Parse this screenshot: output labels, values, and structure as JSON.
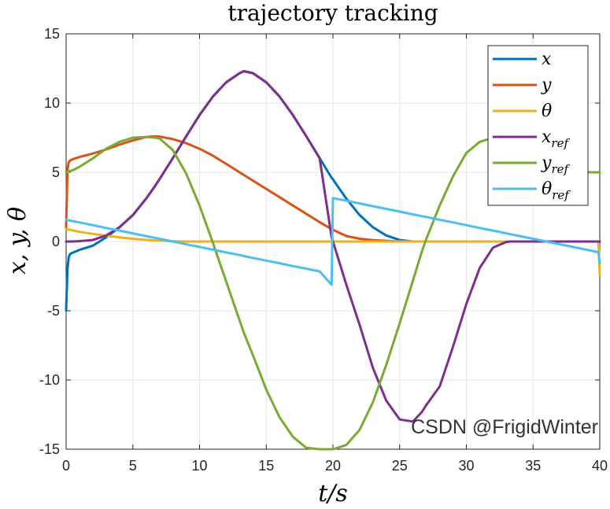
{
  "chart_data": {
    "type": "line",
    "title": "trajectory tracking",
    "xlabel": "t/s",
    "ylabel": "x, y, θ",
    "xlim": [
      0,
      40
    ],
    "ylim": [
      -15,
      15
    ],
    "x_ticks": [
      0,
      5,
      10,
      15,
      20,
      25,
      30,
      35,
      40
    ],
    "y_ticks": [
      15,
      10,
      5,
      0,
      -5,
      -10,
      -15
    ],
    "x_tick_labels": [
      "0",
      "5",
      "10",
      "15",
      "20",
      "25",
      "30",
      "35",
      "40"
    ],
    "y_tick_labels": [
      "15",
      "10",
      "5",
      "0",
      "-5",
      "-10",
      "-15"
    ],
    "grid": true,
    "legend_position": "top-right",
    "x": [
      0,
      0.1,
      0.2,
      0.3,
      0.5,
      1,
      2,
      3,
      4,
      5,
      6,
      6.67,
      7,
      8,
      9,
      10,
      11,
      12,
      13,
      13.33,
      14,
      15,
      16,
      17,
      18,
      19,
      19.9,
      20,
      20.1,
      21,
      22,
      23,
      24,
      25,
      26,
      26.67,
      27,
      28,
      29,
      30,
      31,
      32,
      33,
      33.33,
      34,
      35,
      36,
      37,
      38,
      39,
      39.9,
      40
    ],
    "series": [
      {
        "name": "x",
        "label_main": "x",
        "label_sub": "",
        "color": "#0072BD",
        "values": [
          -5,
          -2,
          -1.1,
          -0.9,
          -0.8,
          -0.6,
          -0.3,
          0.3,
          1.03,
          1.91,
          3.1,
          4.02,
          4.5,
          6.02,
          7.6,
          9.13,
          10.47,
          11.5,
          12.16,
          12.3,
          12.16,
          11.5,
          10.47,
          9.13,
          7.6,
          6.02,
          4.6,
          4.5,
          4.34,
          3.1,
          1.91,
          1.03,
          0.44,
          0.11,
          0.0,
          0.0,
          0.0,
          0.0,
          0.0,
          0.0,
          0.0,
          0.0,
          0.0,
          0.0,
          0.0,
          0.0,
          0.0,
          0.0,
          0.0,
          0.0,
          0.0,
          0.0
        ]
      },
      {
        "name": "y",
        "label_main": "y",
        "label_sub": "",
        "color": "#D95319",
        "values": [
          1,
          5.2,
          5.75,
          5.85,
          5.95,
          6.1,
          6.35,
          6.65,
          7.0,
          7.3,
          7.55,
          7.6,
          7.58,
          7.4,
          7.1,
          6.7,
          6.2,
          5.6,
          5.0,
          4.8,
          4.4,
          3.8,
          3.2,
          2.6,
          2.0,
          1.4,
          0.9,
          0.85,
          0.8,
          0.4,
          0.2,
          0.1,
          0.05,
          0.0,
          0.0,
          0.0,
          0.0,
          0.0,
          0.0,
          0.0,
          0.0,
          0.0,
          0.0,
          0.0,
          0.0,
          0.0,
          0.0,
          0.0,
          0.0,
          0.0,
          0.0,
          0.0
        ]
      },
      {
        "name": "θ",
        "label_main": "θ",
        "label_sub": "",
        "color": "#EDB120",
        "values": [
          0.9,
          0.88,
          0.86,
          0.84,
          0.8,
          0.7,
          0.55,
          0.42,
          0.3,
          0.2,
          0.12,
          0.08,
          0.06,
          0.02,
          0.0,
          0.0,
          0.0,
          0.0,
          0.0,
          0.0,
          0.0,
          0.0,
          0.0,
          0.0,
          0.0,
          0.0,
          0.0,
          0.0,
          0.0,
          0.0,
          0.0,
          0.0,
          0.0,
          0.0,
          0.0,
          0.0,
          0.0,
          0.0,
          0.0,
          0.0,
          0.0,
          0.0,
          0.0,
          0.0,
          0.0,
          0.0,
          0.0,
          0.0,
          0.0,
          0.0,
          0.0,
          -2.4
        ]
      },
      {
        "name": "x_ref",
        "label_main": "x",
        "label_sub": "ref",
        "color": "#7E2F8E",
        "values": [
          0,
          0.0,
          0.0,
          0.0,
          0.0,
          0.03,
          0.11,
          0.44,
          1.03,
          1.91,
          3.1,
          4.02,
          4.5,
          6.02,
          7.6,
          9.13,
          10.47,
          11.5,
          12.16,
          12.3,
          12.16,
          11.5,
          10.47,
          9.13,
          7.6,
          6.02,
          0.3,
          0.0,
          -0.3,
          -3.1,
          -6.02,
          -9.13,
          -11.5,
          -12.85,
          -13.0,
          -12.3,
          -11.8,
          -10.47,
          -7.6,
          -4.5,
          -1.91,
          -0.44,
          -0.03,
          0.0,
          0.0,
          0.0,
          0.0,
          0.0,
          0.0,
          0.0,
          0.0,
          0.0
        ]
      },
      {
        "name": "y_ref",
        "label_main": "y",
        "label_sub": "ref",
        "color": "#77AC30",
        "values": [
          5,
          5.0,
          5.05,
          5.1,
          5.15,
          5.4,
          6.0,
          6.7,
          7.2,
          7.5,
          7.55,
          7.5,
          7.45,
          6.6,
          4.9,
          2.6,
          -0.1,
          -2.9,
          -5.7,
          -6.6,
          -8.2,
          -10.7,
          -12.7,
          -14.1,
          -14.9,
          -15.0,
          -15.0,
          -15.0,
          -14.98,
          -14.7,
          -13.6,
          -11.6,
          -8.9,
          -5.9,
          -2.8,
          -0.7,
          0.2,
          2.6,
          4.7,
          6.4,
          7.2,
          7.5,
          7.3,
          7.2,
          6.8,
          6.1,
          5.5,
          5.1,
          5.0,
          5.0,
          5.0,
          5.0
        ]
      },
      {
        "name": "θ_ref",
        "label_main": "θ",
        "label_sub": "ref",
        "color": "#4DBEEE",
        "values": [
          1.57,
          1.55,
          1.53,
          1.51,
          1.47,
          1.38,
          1.18,
          0.98,
          0.79,
          0.59,
          0.39,
          0.26,
          0.2,
          0.0,
          -0.2,
          -0.39,
          -0.59,
          -0.79,
          -0.98,
          -1.05,
          -1.18,
          -1.38,
          -1.57,
          -1.77,
          -1.96,
          -2.16,
          -3.12,
          3.14,
          3.12,
          2.95,
          2.75,
          2.55,
          2.36,
          2.16,
          1.96,
          1.83,
          1.77,
          1.57,
          1.38,
          1.18,
          0.98,
          0.79,
          0.59,
          0.52,
          0.39,
          0.2,
          0.0,
          -0.2,
          -0.39,
          -0.59,
          -0.77,
          -1.57
        ]
      }
    ],
    "watermark": "CSDN @FrigidWinter"
  }
}
